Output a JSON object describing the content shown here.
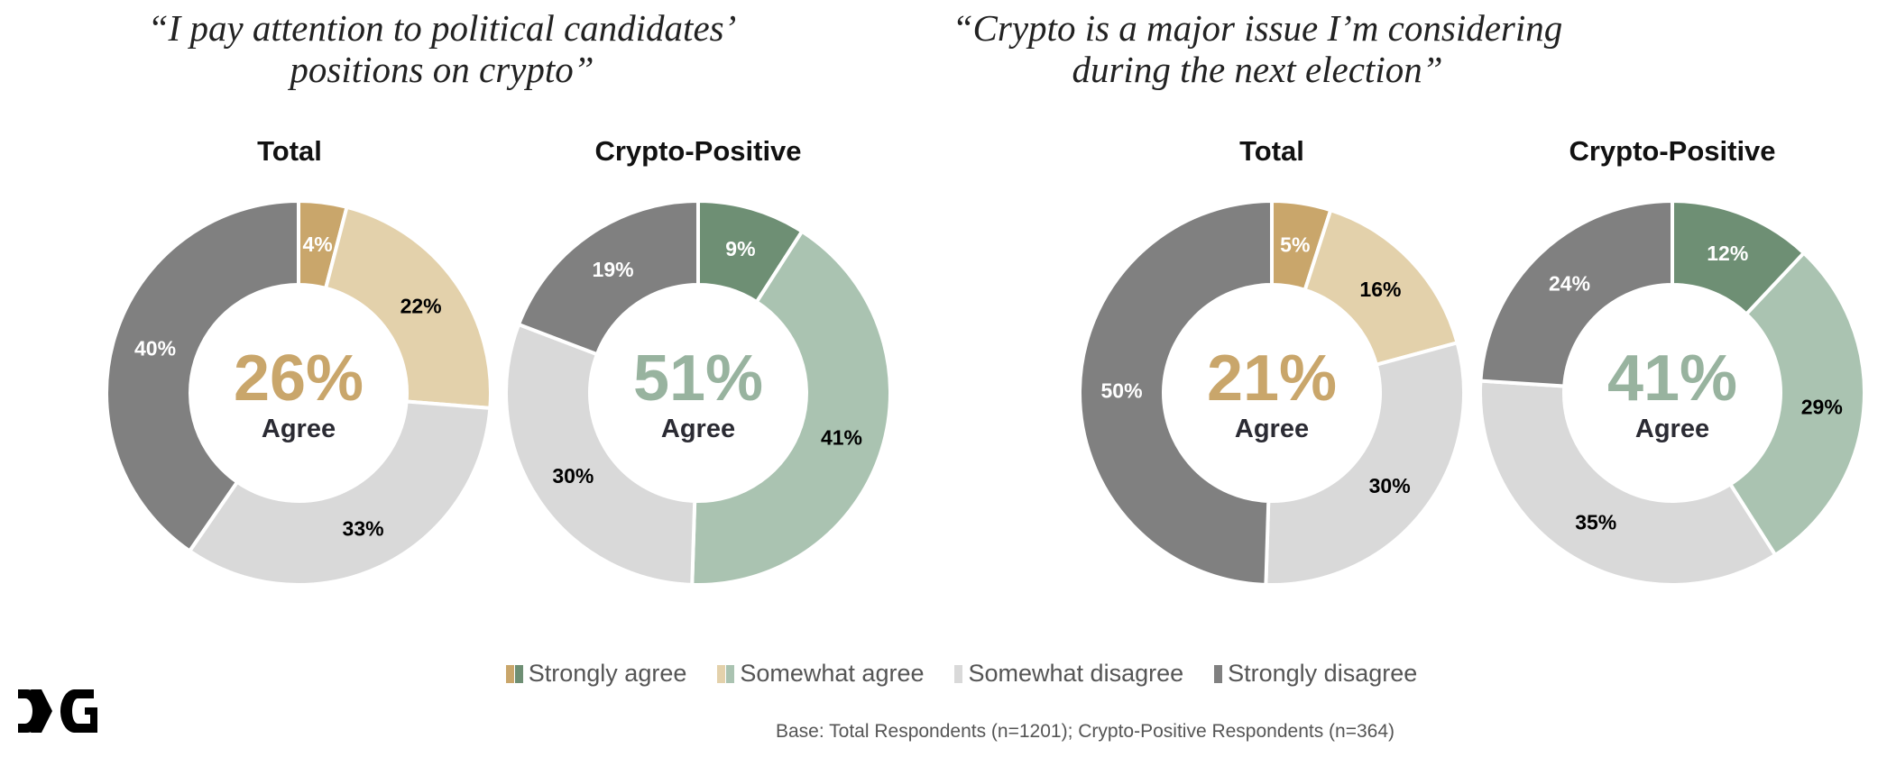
{
  "titles": [
    "“I pay attention to political candidates’ positions on crypto”",
    "“Crypto is a major issue I’m considering during the next election”"
  ],
  "title_lines": [
    [
      "“I pay attention to political candidates’",
      "positions on crypto”"
    ],
    [
      "“Crypto is a major issue I’m considering",
      "during the next election”"
    ]
  ],
  "legend": [
    "Strongly agree",
    "Somewhat agree",
    "Somewhat disagree",
    "Strongly disagree"
  ],
  "base_note": "Base: Total Respondents (n=1201); Crypto-Positive Respondents (n=364)",
  "logo_text": "DCG",
  "colors": {
    "total": [
      "#C9A66B",
      "#E3D1AB",
      "#D9D9D9",
      "#808080"
    ],
    "positive": [
      "#6E8F74",
      "#AAC3B1",
      "#D9D9D9",
      "#808080"
    ],
    "total_center": "#C9A66B",
    "positive_center": "#98B39F"
  },
  "chart_data": [
    {
      "type": "pie",
      "question": 0,
      "title": "Total",
      "palette": "total",
      "categories": [
        "Strongly agree",
        "Somewhat agree",
        "Somewhat disagree",
        "Strongly disagree"
      ],
      "values": [
        4,
        22,
        33,
        40
      ],
      "labels": [
        "4%",
        "22%",
        "33%",
        "40%"
      ],
      "center_value": "26%",
      "center_label": "Agree"
    },
    {
      "type": "pie",
      "question": 0,
      "title": "Crypto-Positive",
      "palette": "positive",
      "categories": [
        "Strongly agree",
        "Somewhat agree",
        "Somewhat disagree",
        "Strongly disagree"
      ],
      "values": [
        9,
        41,
        30,
        19
      ],
      "labels": [
        "9%",
        "41%",
        "30%",
        "19%"
      ],
      "center_value": "51%",
      "center_label": "Agree"
    },
    {
      "type": "pie",
      "question": 1,
      "title": "Total",
      "palette": "total",
      "categories": [
        "Strongly agree",
        "Somewhat agree",
        "Somewhat disagree",
        "Strongly disagree"
      ],
      "values": [
        5,
        16,
        30,
        50
      ],
      "labels": [
        "5%",
        "16%",
        "30%",
        "50%"
      ],
      "center_value": "21%",
      "center_label": "Agree"
    },
    {
      "type": "pie",
      "question": 1,
      "title": "Crypto-Positive",
      "palette": "positive",
      "categories": [
        "Strongly agree",
        "Somewhat agree",
        "Somewhat disagree",
        "Strongly disagree"
      ],
      "values": [
        12,
        29,
        35,
        24
      ],
      "labels": [
        "12%",
        "29%",
        "35%",
        "24%"
      ],
      "center_value": "41%",
      "center_label": "Agree"
    }
  ]
}
